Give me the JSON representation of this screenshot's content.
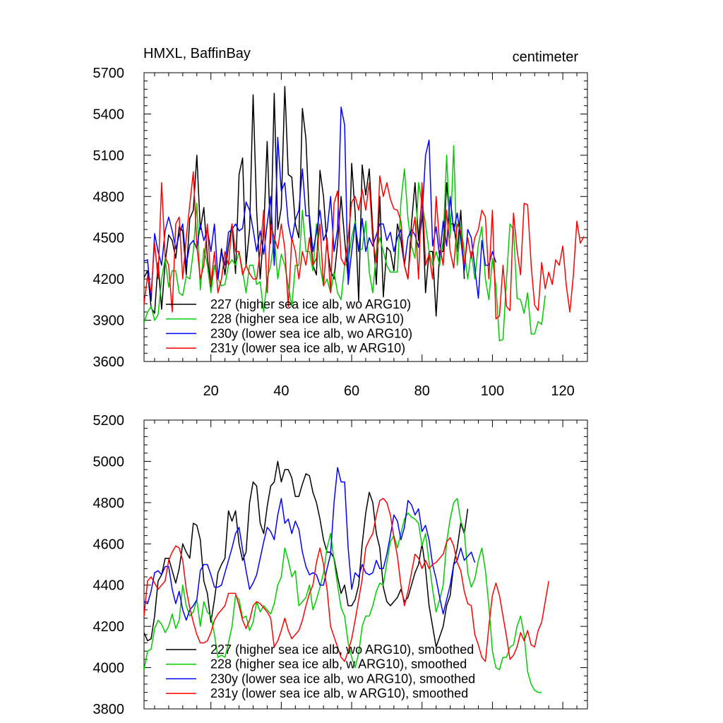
{
  "figure": {
    "title_left": "HMXL, BaffinBay",
    "title_right": "centimeter"
  },
  "chart_data": [
    {
      "type": "line",
      "title": "HMXL, BaffinBay",
      "units": "centimeter",
      "xlim": [
        1,
        127
      ],
      "ylim": [
        3600,
        5700
      ],
      "xticks": [
        20,
        40,
        60,
        80,
        100,
        120
      ],
      "yticks": [
        3600,
        3900,
        4200,
        4500,
        4800,
        5100,
        5400,
        5700
      ],
      "series": [
        {
          "name": "227 (higher sea ice alb, wo ARG10)",
          "color": "#000000",
          "values": [
            4210,
            4260,
            3990,
            3950,
            4320,
            3980,
            4320,
            4520,
            4480,
            4350,
            4580,
            4550,
            4230,
            4640,
            4700,
            5100,
            4560,
            4720,
            4360,
            4140,
            4300,
            4200,
            4420,
            4230,
            4440,
            4600,
            4240,
            4960,
            5080,
            4300,
            4560,
            5540,
            4700,
            4200,
            4550,
            5200,
            4460,
            5550,
            4560,
            4720,
            5600,
            4960,
            4940,
            4600,
            4500,
            5440,
            5220,
            4620,
            4300,
            4230,
            4990,
            4800,
            4440,
            4260,
            4200,
            4460,
            4800,
            4490,
            4200,
            5040,
            4680,
            4040,
            5030,
            4810,
            5000,
            4560,
            4160,
            4800,
            4070,
            4430,
            4400,
            4260,
            4600,
            4480,
            4300,
            4200,
            4600,
            4900,
            4480,
            4800,
            4100,
            4400,
            4400,
            3930,
            4400,
            4400,
            4900,
            4600,
            4600,
            4400,
            4700,
            4200
          ]
        },
        {
          "name": "228 (higher sea ice alb, w ARG10)",
          "color": "#00cc00",
          "values": [
            3880,
            3960,
            4000,
            3900,
            3940,
            4200,
            4350,
            4140,
            4260,
            4260,
            4100,
            4080,
            4220,
            4200,
            4400,
            4750,
            4120,
            4420,
            4300,
            4100,
            4300,
            4200,
            4150,
            4160,
            4300,
            4340,
            4300,
            4400,
            4260,
            4100,
            4300,
            4300,
            4160,
            4180,
            3960,
            4200,
            4300,
            4500,
            4200,
            4380,
            4300,
            4150,
            4000,
            4300,
            4300,
            4700,
            4400,
            4400,
            4260,
            4600,
            4300,
            4150,
            4200,
            4100,
            4250,
            4100,
            4050,
            4300,
            4320,
            4500,
            4620,
            4400,
            4420,
            4620,
            4250,
            4100,
            4400,
            4500,
            4400,
            4300,
            4250,
            4250,
            4250,
            4760,
            5000,
            4640,
            4440,
            4350,
            4900,
            4750,
            4600,
            4400,
            4300,
            4400,
            4300,
            4480,
            5100,
            4500,
            5170,
            4300,
            4600,
            4400,
            4200,
            4400,
            4200,
            4450,
            4580,
            4200,
            4050,
            4350,
            4150,
            3750,
            3760,
            4200,
            4600,
            4560,
            4060,
            4050,
            3950,
            4100,
            3800,
            3800,
            3890,
            3870,
            4080
          ]
        },
        {
          "name": "230y (lower sea ice alb, wo ARG10)",
          "color": "#0000ff",
          "values": [
            4330,
            4340,
            4040,
            4530,
            4400,
            4300,
            4550,
            4650,
            4550,
            4420,
            4520,
            4600,
            4300,
            4450,
            4480,
            4420,
            4600,
            4480,
            4560,
            4400,
            4600,
            4200,
            4400,
            4300,
            4540,
            4560,
            4600,
            4550,
            4570,
            4760,
            4700,
            4560,
            4400,
            4550,
            4380,
            4600,
            4800,
            4300,
            5230,
            4840,
            4900,
            4600,
            4480,
            4630,
            4700,
            5000,
            4660,
            4660,
            4400,
            4540,
            4700,
            4480,
            4550,
            4800,
            4400,
            4560,
            5450,
            5320,
            4160,
            4400,
            4600,
            4400,
            4640,
            4400,
            4500,
            4440,
            4520,
            4600,
            4600,
            4480,
            4540,
            4400,
            4500,
            4560,
            4300,
            4500,
            4560,
            4520,
            4430,
            4640,
            5100,
            5210,
            4440,
            4580,
            4360,
            4620,
            4440,
            4800,
            4550,
            4680,
            4490,
            4260,
            4560,
            4500,
            4280,
            4060,
            4480,
            4300,
            4300,
            4400,
            4320
          ]
        },
        {
          "name": "231y (lower sea ice alb, w ARG10)",
          "color": "#ff0000",
          "values": [
            4020,
            4220,
            4100,
            4460,
            4200,
            4900,
            4360,
            4300,
            3960,
            4600,
            4650,
            4200,
            4500,
            4740,
            4980,
            4440,
            4200,
            4300,
            4600,
            4160,
            4400,
            4100,
            4200,
            4400,
            4300,
            4600,
            4400,
            4400,
            4230,
            4300,
            4240,
            4200,
            4200,
            4400,
            4700,
            4100,
            4600,
            4500,
            4420,
            4600,
            4420,
            4000,
            4500,
            4400,
            4200,
            4400,
            4300,
            4500,
            4300,
            4350,
            4600,
            4150,
            4500,
            4100,
            4750,
            4840,
            4350,
            4300,
            4500,
            4760,
            4800,
            4700,
            4850,
            4700,
            4900,
            4480,
            4320,
            4950,
            4800,
            4900,
            4780,
            4710,
            4700,
            4620,
            4300,
            4200,
            4500,
            4650,
            4200,
            4900,
            4300,
            4380,
            4200,
            4800,
            4450,
            4300,
            4700,
            4400,
            4280,
            4600,
            4550,
            4300,
            4500,
            4350,
            4500,
            4560,
            4700,
            4650,
            4200,
            4700,
            3910,
            3930,
            4300,
            4000,
            3970,
            4680,
            4410,
            4230,
            4750,
            4740,
            4300,
            4010,
            3970,
            4320,
            4130,
            4250,
            4160,
            4340,
            4300,
            4440,
            4150,
            3960,
            4230,
            4620,
            4460,
            4510
          ]
        }
      ]
    },
    {
      "type": "line",
      "xlim": [
        1,
        127
      ],
      "ylim": [
        3800,
        5200
      ],
      "xticks": [
        20,
        40,
        60,
        80,
        100,
        120
      ],
      "yticks": [
        3800,
        4000,
        4200,
        4400,
        4600,
        4800,
        5000,
        5200
      ],
      "series": [
        {
          "name": "227 (higher sea ice alb, wo ARG10), smoothed",
          "color": "#000000",
          "values": [
            4170,
            4130,
            4140,
            4250,
            4420,
            4450,
            4530,
            4530,
            4470,
            4410,
            4480,
            4600,
            4560,
            4530,
            4700,
            4690,
            4620,
            4420,
            4360,
            4220,
            4330,
            4460,
            4500,
            4530,
            4760,
            4710,
            4760,
            4600,
            4520,
            4560,
            4800,
            4900,
            4880,
            4700,
            4650,
            4780,
            4880,
            4900,
            5000,
            4900,
            4960,
            4960,
            4920,
            4830,
            4830,
            4890,
            4940,
            4930,
            4850,
            4800,
            4720,
            4620,
            4560,
            4560,
            4530,
            4440,
            4360,
            4400,
            4300,
            4300,
            4330,
            4400,
            4600,
            4750,
            4850,
            4800,
            4650,
            4580,
            4390,
            4320,
            4300,
            4320,
            4340,
            4380,
            4320,
            4340,
            4400,
            4460,
            4500,
            4600,
            4480,
            4300,
            4200,
            4100,
            4150,
            4200,
            4300,
            4350,
            4500,
            4580,
            4700,
            4650,
            4770
          ]
        },
        {
          "name": "228 (higher sea ice alb, w ARG10), smoothed",
          "color": "#00cc00",
          "values": [
            3990,
            4080,
            4090,
            4190,
            4230,
            4210,
            4170,
            4200,
            4260,
            4190,
            4230,
            4400,
            4300,
            4250,
            4270,
            4330,
            4200,
            4320,
            4270,
            4250,
            4160,
            4050,
            4060,
            4050,
            4120,
            4200,
            4350,
            4330,
            4240,
            4250,
            4180,
            4220,
            4320,
            4270,
            4300,
            4280,
            4260,
            4310,
            4400,
            4440,
            4580,
            4520,
            4440,
            4470,
            4300,
            4320,
            4340,
            4400,
            4280,
            4330,
            4390,
            4460,
            4580,
            4650,
            4520,
            4400,
            4290,
            4250,
            4120,
            4050,
            4000,
            4070,
            4200,
            4250,
            4250,
            4300,
            4370,
            4410,
            4400,
            4510,
            4610,
            4640,
            4580,
            4650,
            4720,
            4750,
            4730,
            4720,
            4700,
            4590,
            4650,
            4510,
            4380,
            4270,
            4330,
            4400,
            4610,
            4720,
            4800,
            4820,
            4710,
            4660,
            4460,
            4390,
            4430,
            4520,
            4580,
            4470,
            4300,
            4080,
            4000,
            3990,
            4050,
            4050,
            4100,
            4110,
            4200,
            4250,
            4160,
            3980,
            3920,
            3890,
            3880,
            3880
          ]
        },
        {
          "name": "230y (lower sea ice alb, wo ARG10), smoothed",
          "color": "#0000ff",
          "values": [
            4320,
            4310,
            4370,
            4460,
            4470,
            4450,
            4490,
            4490,
            4380,
            4310,
            4370,
            4280,
            4230,
            4280,
            4300,
            4330,
            4470,
            4500,
            4500,
            4450,
            4390,
            4390,
            4400,
            4460,
            4520,
            4580,
            4650,
            4680,
            4570,
            4470,
            4380,
            4410,
            4450,
            4530,
            4610,
            4680,
            4660,
            4620,
            4740,
            4820,
            4700,
            4720,
            4650,
            4710,
            4670,
            4560,
            4490,
            4450,
            4460,
            4450,
            4400,
            4400,
            4480,
            4550,
            4800,
            4970,
            4900,
            4900,
            4580,
            4380,
            4460,
            4440,
            4500,
            4460,
            4450,
            4460,
            4520,
            4480,
            4480,
            4550,
            4640,
            4740,
            4710,
            4620,
            4680,
            4810,
            4790,
            4740,
            4770,
            4660,
            4690,
            4620,
            4500,
            4430,
            4340,
            4260,
            4330,
            4400,
            4500,
            4520,
            4580,
            4520,
            4540,
            4560,
            4510
          ]
        },
        {
          "name": "231y (lower sea ice alb, w ARG10), smoothed",
          "color": "#ff0000",
          "values": [
            4250,
            4420,
            4440,
            4410,
            4380,
            4400,
            4420,
            4520,
            4560,
            4590,
            4580,
            4520,
            4380,
            4290,
            4220,
            4160,
            4120,
            4120,
            4130,
            4170,
            4230,
            4260,
            4280,
            4300,
            4360,
            4360,
            4360,
            4300,
            4230,
            4190,
            4230,
            4300,
            4320,
            4310,
            4290,
            4270,
            4240,
            4100,
            4130,
            4180,
            4240,
            4180,
            4140,
            4160,
            4180,
            4230,
            4300,
            4360,
            4400,
            4510,
            4580,
            4500,
            4380,
            4200,
            4150,
            4100,
            4050,
            4030,
            4080,
            4140,
            4230,
            4330,
            4430,
            4580,
            4620,
            4650,
            4740,
            4810,
            4820,
            4800,
            4740,
            4630,
            4540,
            4400,
            4300,
            4370,
            4460,
            4550,
            4530,
            4480,
            4520,
            4480,
            4500,
            4510,
            4530,
            4550,
            4610,
            4630,
            4590,
            4510,
            4470,
            4370,
            4310,
            4300,
            4160,
            4110,
            4050,
            4030,
            4200,
            4350,
            4410,
            4350,
            4250,
            4150,
            4040,
            4060,
            4100,
            4170,
            4130,
            4180,
            4110,
            4100,
            4180,
            4220,
            4320,
            4420
          ]
        }
      ]
    }
  ]
}
